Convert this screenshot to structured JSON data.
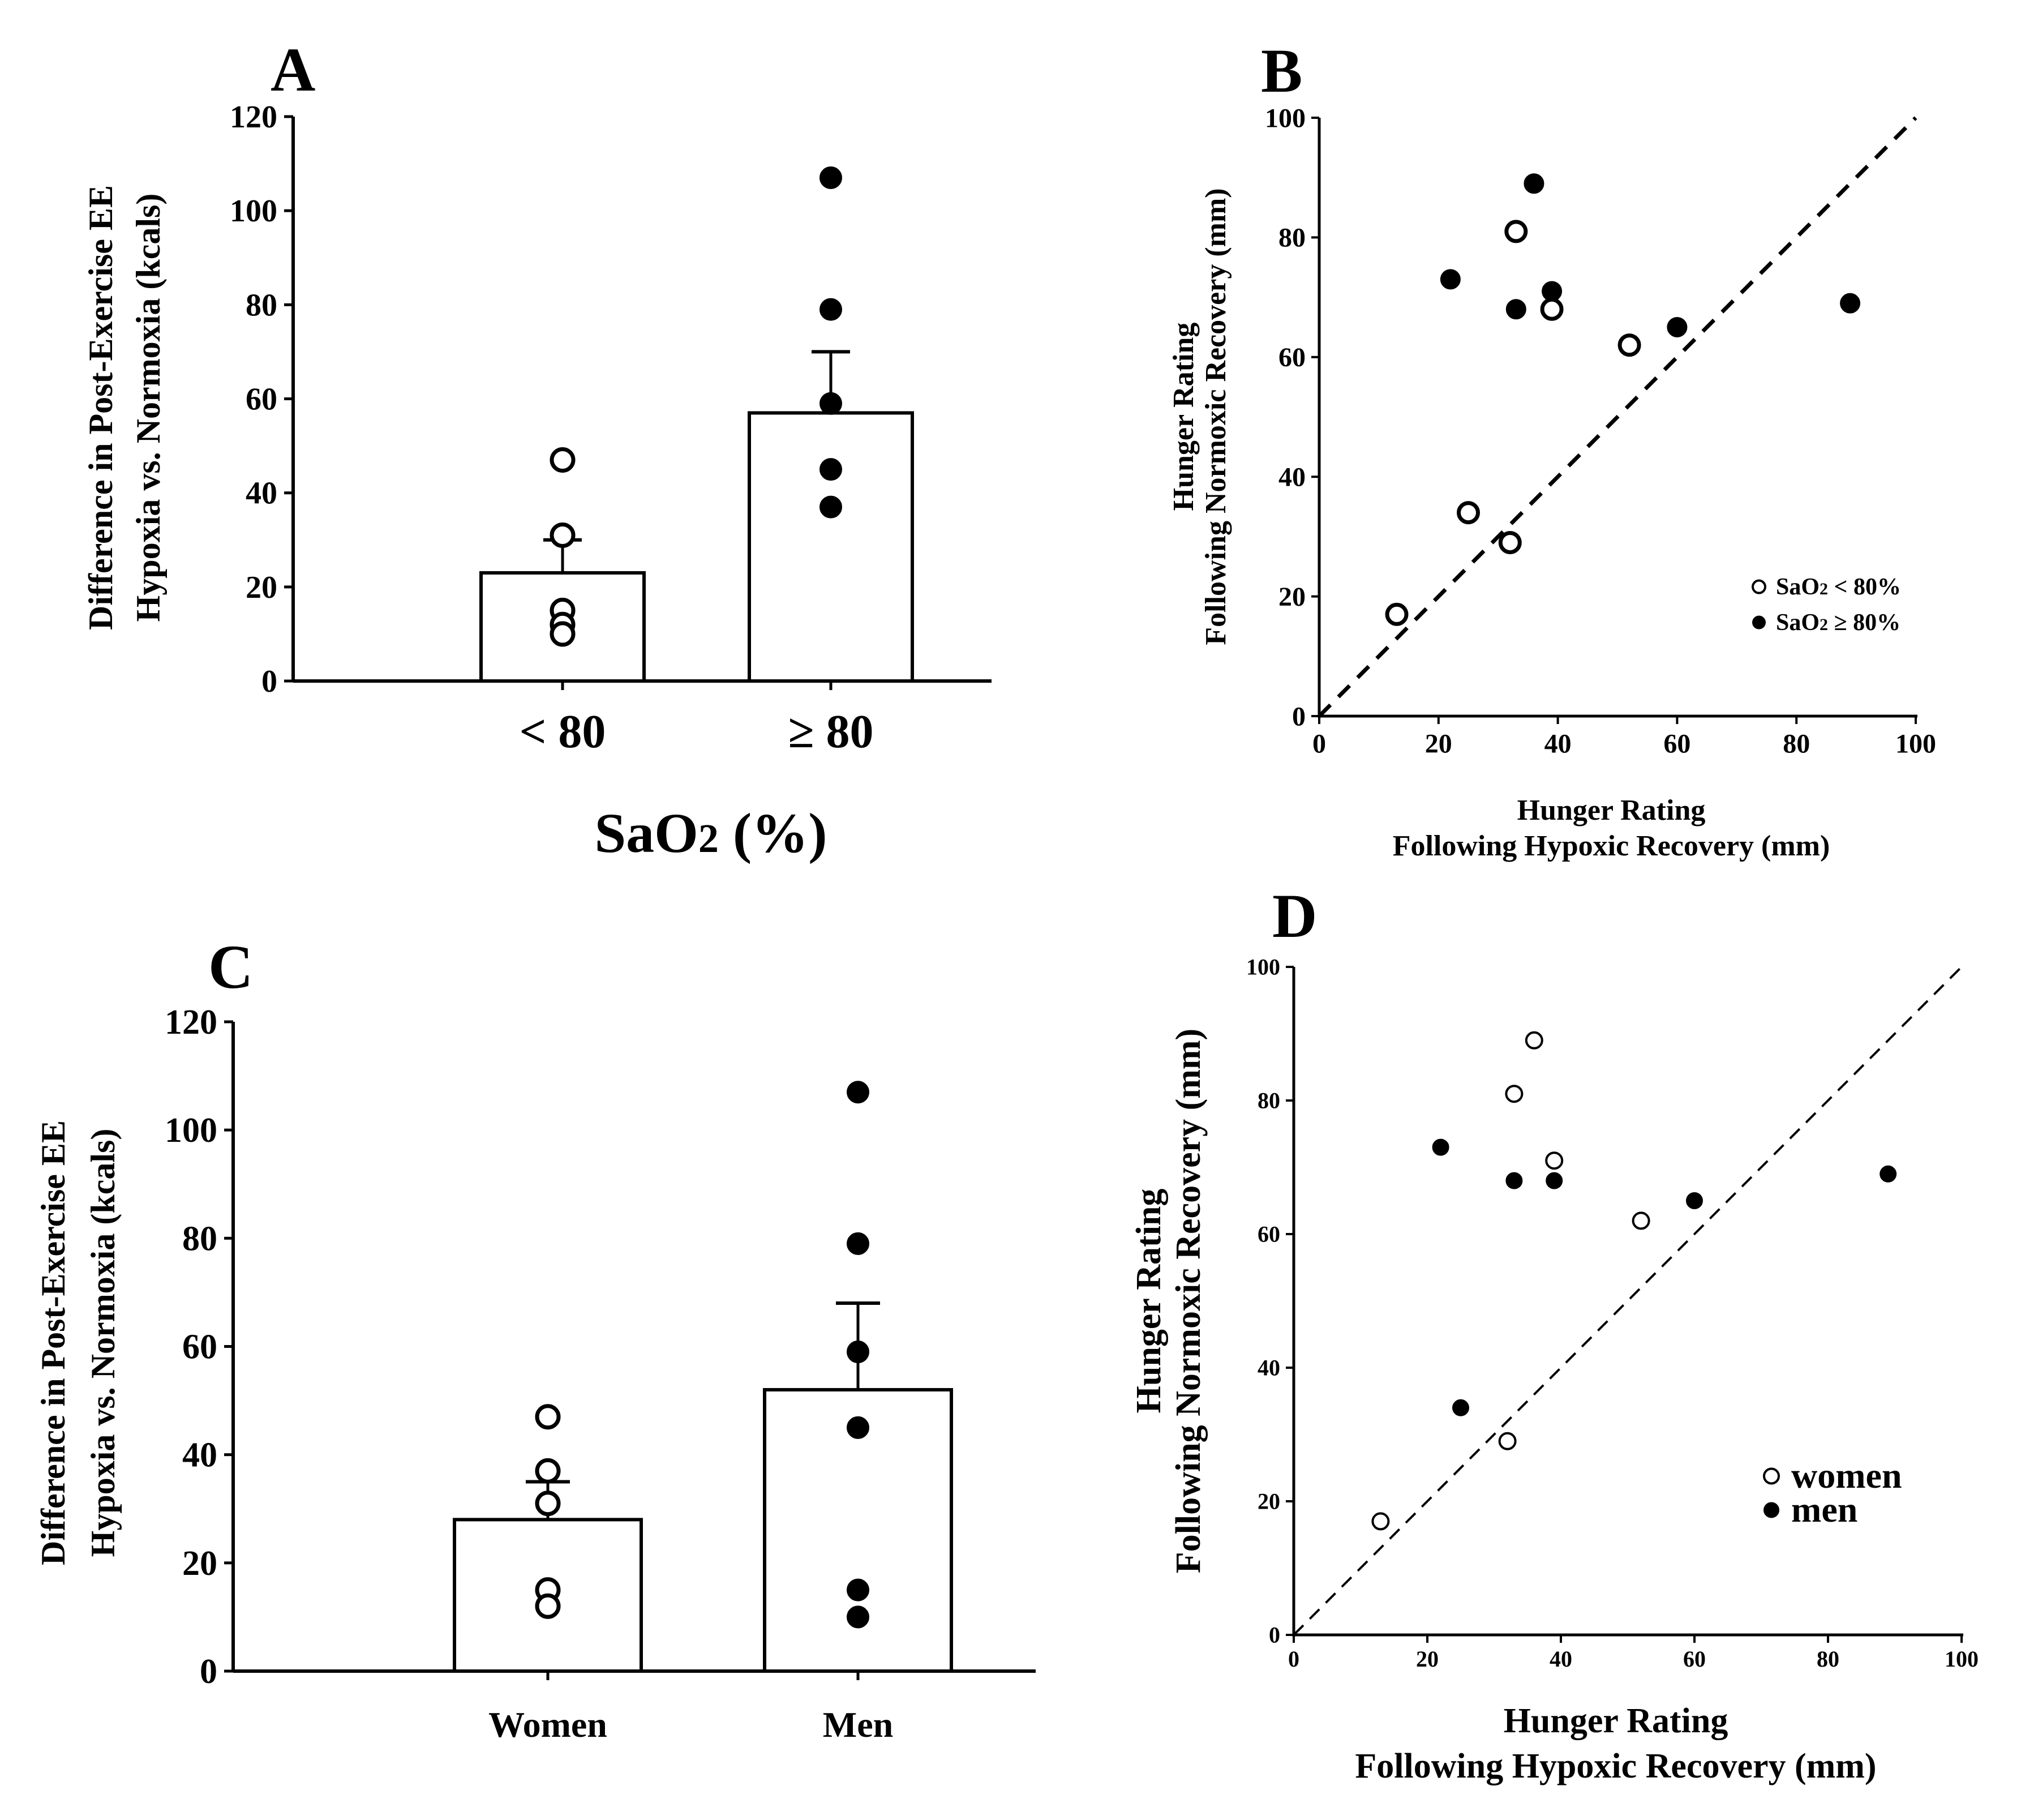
{
  "colors": {
    "ink": "#000000",
    "background": "#ffffff"
  },
  "chart_data": [
    {
      "panel": "A",
      "type": "bar",
      "categories": [
        "< 80",
        "≥ 80"
      ],
      "values": [
        23,
        57
      ],
      "error_upper": [
        30,
        70
      ],
      "points": [
        {
          "category": "< 80",
          "fill": "open",
          "values": [
            47,
            31,
            15,
            12,
            10
          ]
        },
        {
          "category": "≥ 80",
          "fill": "filled",
          "values": [
            107,
            79,
            59,
            45,
            37
          ]
        }
      ],
      "xlabel": "SaO₂ (%)",
      "ylabel": [
        "Difference in Post-Exercise EE",
        "Hypoxia vs. Normoxia (kcals)"
      ],
      "ylim": [
        0,
        120
      ],
      "yticks": [
        0,
        20,
        40,
        60,
        80,
        100,
        120
      ]
    },
    {
      "panel": "B",
      "type": "scatter",
      "series": [
        {
          "name": "SaO₂ < 80%",
          "fill": "open",
          "x": [
            13,
            25,
            32,
            33,
            39,
            52
          ],
          "y": [
            17,
            34,
            29,
            81,
            68,
            62
          ]
        },
        {
          "name": "SaO₂ ≥ 80%",
          "fill": "filled",
          "x": [
            22,
            33,
            36,
            39,
            60,
            89
          ],
          "y": [
            73,
            68,
            89,
            71,
            65,
            69
          ]
        }
      ],
      "identity_line": true,
      "xlabel": [
        "Hunger Rating",
        "Following Hypoxic Recovery (mm)"
      ],
      "ylabel": [
        "Hunger Rating",
        "Following Normoxic Recovery (mm)"
      ],
      "xlim": [
        0,
        100
      ],
      "ylim": [
        0,
        100
      ],
      "xticks": [
        0,
        20,
        40,
        60,
        80,
        100
      ],
      "yticks": [
        0,
        20,
        40,
        60,
        80,
        100
      ],
      "legend": "bottom-right"
    },
    {
      "panel": "C",
      "type": "bar",
      "categories": [
        "Women",
        "Men"
      ],
      "values": [
        28,
        52
      ],
      "error_upper": [
        35,
        68
      ],
      "points": [
        {
          "category": "Women",
          "fill": "open",
          "values": [
            47,
            37,
            31,
            15,
            12
          ]
        },
        {
          "category": "Men",
          "fill": "filled",
          "values": [
            107,
            79,
            59,
            45,
            15,
            10
          ]
        }
      ],
      "xlabel": "",
      "ylabel": [
        "Difference in Post-Exercise EE",
        "Hypoxia vs. Normoxia (kcals)"
      ],
      "ylim": [
        0,
        120
      ],
      "yticks": [
        0,
        20,
        40,
        60,
        80,
        100,
        120
      ]
    },
    {
      "panel": "D",
      "type": "scatter",
      "series": [
        {
          "name": "women",
          "fill": "open",
          "x": [
            13,
            32,
            33,
            36,
            39,
            52
          ],
          "y": [
            17,
            29,
            81,
            89,
            71,
            62
          ]
        },
        {
          "name": "men",
          "fill": "filled",
          "x": [
            22,
            25,
            33,
            39,
            60,
            89
          ],
          "y": [
            73,
            34,
            68,
            68,
            65,
            69
          ]
        }
      ],
      "identity_line": true,
      "xlabel": [
        "Hunger Rating",
        "Following Hypoxic Recovery (mm)"
      ],
      "ylabel": [
        "Hunger Rating",
        "Following Normoxic Recovery (mm)"
      ],
      "xlim": [
        0,
        100
      ],
      "ylim": [
        0,
        100
      ],
      "xticks": [
        0,
        20,
        40,
        60,
        80,
        100
      ],
      "yticks": [
        0,
        20,
        40,
        60,
        80,
        100
      ],
      "legend": "bottom-right"
    }
  ]
}
